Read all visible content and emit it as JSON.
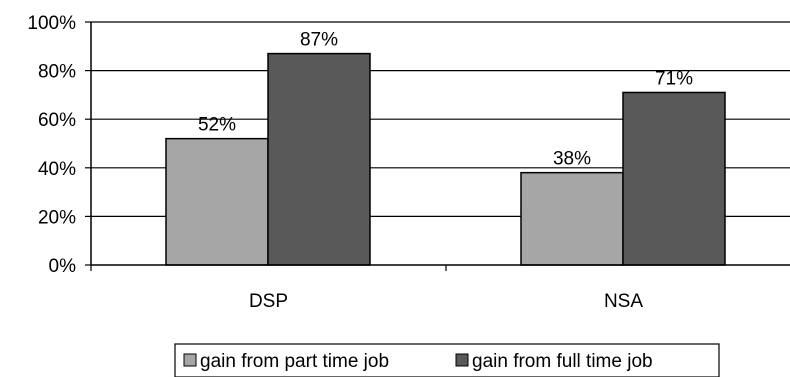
{
  "chart_data": {
    "type": "bar",
    "categories": [
      "DSP",
      "NSA"
    ],
    "series": [
      {
        "name": "gain from part time job",
        "values": [
          52,
          38
        ],
        "labels": [
          "52%",
          "38%"
        ],
        "color": "#a6a6a6"
      },
      {
        "name": "gain from full time job",
        "values": [
          87,
          71
        ],
        "labels": [
          "87%",
          "71%"
        ],
        "color": "#595959"
      }
    ],
    "ylim": [
      0,
      100
    ],
    "yticks": [
      0,
      20,
      40,
      60,
      80,
      100
    ],
    "ytick_labels": [
      "0%",
      "20%",
      "40%",
      "60%",
      "80%",
      "100%"
    ],
    "grid": true,
    "legend": "bottom"
  }
}
